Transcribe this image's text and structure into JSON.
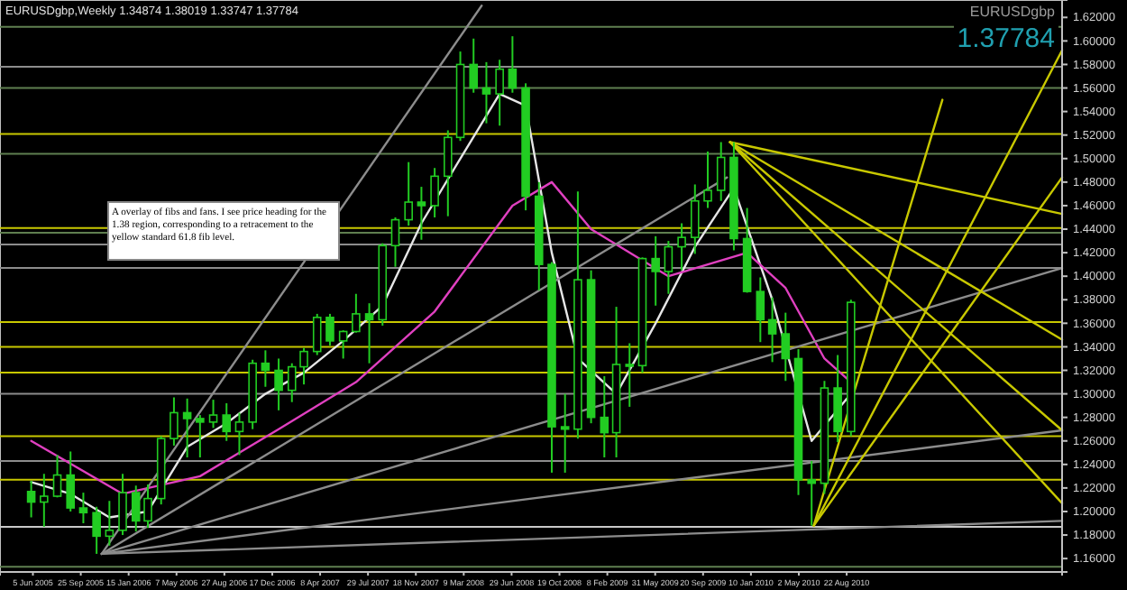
{
  "chart_data": {
    "type": "candlestick",
    "title": "EURUSDgbp,Weekly  1.34874 1.38019 1.33747 1.37784",
    "subtitle": "EURUSDgbp",
    "annotations": [
      "A overlay of fibs and fans. I see price heading for the 1.38 region, corresponding to a retracement to the yellow standard 61.8 fib level.",
      "1.37784"
    ],
    "xlim": [
      "2005-03-20",
      "2012-01-08"
    ],
    "ylim": [
      1.1486,
      1.6348
    ],
    "xticks": [
      {
        "value": "2005-06-05",
        "label": "5 Jun 2005"
      },
      {
        "value": "2005-09-25",
        "label": "25 Sep 2005"
      },
      {
        "value": "2006-01-15",
        "label": "15 Jan 2006"
      },
      {
        "value": "2006-05-07",
        "label": "7 May 2006"
      },
      {
        "value": "2006-08-27",
        "label": "27 Aug 2006"
      },
      {
        "value": "2006-12-17",
        "label": "17 Dec 2006"
      },
      {
        "value": "2007-04-08",
        "label": "8 Apr 2007"
      },
      {
        "value": "2007-07-29",
        "label": "29 Jul 2007"
      },
      {
        "value": "2007-11-18",
        "label": "18 Nov 2007"
      },
      {
        "value": "2008-03-09",
        "label": "9 Mar 2008"
      },
      {
        "value": "2008-06-29",
        "label": "29 Jun 2008"
      },
      {
        "value": "2008-10-19",
        "label": "19 Oct 2008"
      },
      {
        "value": "2009-02-08",
        "label": "8 Feb 2009"
      },
      {
        "value": "2009-05-31",
        "label": "31 May 2009"
      },
      {
        "value": "2009-09-20",
        "label": "20 Sep 2009"
      },
      {
        "value": "2010-01-10",
        "label": "10 Jan 2010"
      },
      {
        "value": "2010-05-02",
        "label": "2 May 2010"
      },
      {
        "value": "2010-08-22",
        "label": "22 Aug 2010"
      }
    ],
    "yticks": [
      {
        "value": 1.16,
        "label": "1.16000"
      },
      {
        "value": 1.18,
        "label": "1.18000"
      },
      {
        "value": 1.2,
        "label": "1.20000"
      },
      {
        "value": 1.22,
        "label": "1.22000"
      },
      {
        "value": 1.24,
        "label": "1.24000"
      },
      {
        "value": 1.26,
        "label": "1.26000"
      },
      {
        "value": 1.28,
        "label": "1.28000"
      },
      {
        "value": 1.3,
        "label": "1.30000"
      },
      {
        "value": 1.32,
        "label": "1.32000"
      },
      {
        "value": 1.34,
        "label": "1.34000"
      },
      {
        "value": 1.36,
        "label": "1.36000"
      },
      {
        "value": 1.38,
        "label": "1.38000"
      },
      {
        "value": 1.4,
        "label": "1.40000"
      },
      {
        "value": 1.42,
        "label": "1.42000"
      },
      {
        "value": 1.44,
        "label": "1.44000"
      },
      {
        "value": 1.46,
        "label": "1.46000"
      },
      {
        "value": 1.48,
        "label": "1.48000"
      },
      {
        "value": 1.5,
        "label": "1.50000"
      },
      {
        "value": 1.52,
        "label": "1.52000"
      },
      {
        "value": 1.54,
        "label": "1.54000"
      },
      {
        "value": 1.56,
        "label": "1.56000"
      },
      {
        "value": 1.58,
        "label": "1.58000"
      },
      {
        "value": 1.6,
        "label": "1.60000"
      },
      {
        "value": 1.62,
        "label": "1.62000"
      }
    ],
    "ref_lines": [
      {
        "axis": "y",
        "value": 1.612,
        "color": "#5f7f50"
      },
      {
        "axis": "y",
        "value": 1.578,
        "color": "#8c8c8c"
      },
      {
        "axis": "y",
        "value": 1.56,
        "color": "#5f7f50"
      },
      {
        "axis": "y",
        "value": 1.521,
        "color": "#c8c800"
      },
      {
        "axis": "y",
        "value": 1.504,
        "color": "#5f7f50"
      },
      {
        "axis": "y",
        "value": 1.441,
        "color": "#c8c800"
      },
      {
        "axis": "y",
        "value": 1.437,
        "color": "#5f7f50"
      },
      {
        "axis": "y",
        "value": 1.427,
        "color": "#8c8c8c"
      },
      {
        "axis": "y",
        "value": 1.407,
        "color": "#8c8c8c"
      },
      {
        "axis": "y",
        "value": 1.361,
        "color": "#c8c800"
      },
      {
        "axis": "y",
        "value": 1.34,
        "color": "#c8c800"
      },
      {
        "axis": "y",
        "value": 1.318,
        "color": "#c8c800"
      },
      {
        "axis": "y",
        "value": 1.3,
        "color": "#8c8c8c"
      },
      {
        "axis": "y",
        "value": 1.264,
        "color": "#c8c800"
      },
      {
        "axis": "y",
        "value": 1.243,
        "color": "#8c8c8c"
      },
      {
        "axis": "y",
        "value": 1.227,
        "color": "#c8c800"
      },
      {
        "axis": "y",
        "value": 1.187,
        "color": "#c8c8c8"
      },
      {
        "axis": "y",
        "value": 1.153,
        "color": "#5f7f50"
      }
    ],
    "series": [
      {
        "color": "#22cc22",
        "x": [
          "2005-06-01",
          "2005-07-01",
          "2005-08-01",
          "2005-09-01",
          "2005-10-01",
          "2005-11-01",
          "2005-12-01",
          "2006-01-01",
          "2006-02-01",
          "2006-03-01",
          "2006-04-01",
          "2006-05-01",
          "2006-06-01",
          "2006-07-01",
          "2006-08-01",
          "2006-09-01",
          "2006-10-01",
          "2006-11-01",
          "2006-12-01",
          "2007-01-01",
          "2007-02-01",
          "2007-03-01",
          "2007-04-01",
          "2007-05-01",
          "2007-06-01",
          "2007-07-01",
          "2007-08-01",
          "2007-09-01",
          "2007-10-01",
          "2007-11-01",
          "2007-12-01",
          "2008-01-01",
          "2008-02-01",
          "2008-03-01",
          "2008-04-01",
          "2008-05-01",
          "2008-06-01",
          "2008-07-01",
          "2008-08-01",
          "2008-09-01",
          "2008-10-01",
          "2008-11-01",
          "2008-12-01",
          "2009-01-01",
          "2009-02-01",
          "2009-03-01",
          "2009-04-01",
          "2009-05-01",
          "2009-06-01",
          "2009-07-01",
          "2009-08-01",
          "2009-09-01",
          "2009-10-01",
          "2009-11-01",
          "2009-12-01",
          "2010-01-01",
          "2010-02-01",
          "2010-03-01",
          "2010-04-01",
          "2010-05-01",
          "2010-06-01",
          "2010-07-01",
          "2010-08-01",
          "2010-09-01"
        ],
        "ohlc": [
          [
            1.217,
            1.226,
            1.195,
            1.208
          ],
          [
            1.208,
            1.232,
            1.187,
            1.213
          ],
          [
            1.213,
            1.248,
            1.212,
            1.231
          ],
          [
            1.231,
            1.251,
            1.2,
            1.203
          ],
          [
            1.203,
            1.216,
            1.19,
            1.199
          ],
          [
            1.199,
            1.204,
            1.164,
            1.179
          ],
          [
            1.179,
            1.209,
            1.171,
            1.184
          ],
          [
            1.184,
            1.232,
            1.18,
            1.216
          ],
          [
            1.216,
            1.222,
            1.183,
            1.192
          ],
          [
            1.192,
            1.223,
            1.186,
            1.211
          ],
          [
            1.211,
            1.264,
            1.206,
            1.262
          ],
          [
            1.262,
            1.297,
            1.256,
            1.284
          ],
          [
            1.284,
            1.296,
            1.246,
            1.279
          ],
          [
            1.279,
            1.282,
            1.246,
            1.276
          ],
          [
            1.276,
            1.295,
            1.271,
            1.282
          ],
          [
            1.282,
            1.292,
            1.26,
            1.268
          ],
          [
            1.268,
            1.284,
            1.248,
            1.276
          ],
          [
            1.276,
            1.329,
            1.27,
            1.326
          ],
          [
            1.326,
            1.337,
            1.306,
            1.32
          ],
          [
            1.32,
            1.33,
            1.286,
            1.303
          ],
          [
            1.303,
            1.326,
            1.293,
            1.323
          ],
          [
            1.323,
            1.339,
            1.308,
            1.336
          ],
          [
            1.336,
            1.368,
            1.333,
            1.365
          ],
          [
            1.365,
            1.368,
            1.341,
            1.345
          ],
          [
            1.345,
            1.354,
            1.33,
            1.353
          ],
          [
            1.353,
            1.385,
            1.352,
            1.368
          ],
          [
            1.368,
            1.377,
            1.326,
            1.363
          ],
          [
            1.363,
            1.428,
            1.358,
            1.426
          ],
          [
            1.426,
            1.45,
            1.408,
            1.448
          ],
          [
            1.448,
            1.497,
            1.443,
            1.463
          ],
          [
            1.463,
            1.476,
            1.431,
            1.46
          ],
          [
            1.46,
            1.492,
            1.45,
            1.485
          ],
          [
            1.485,
            1.524,
            1.451,
            1.518
          ],
          [
            1.518,
            1.591,
            1.515,
            1.58
          ],
          [
            1.58,
            1.602,
            1.556,
            1.56
          ],
          [
            1.56,
            1.582,
            1.53,
            1.555
          ],
          [
            1.555,
            1.584,
            1.528,
            1.576
          ],
          [
            1.576,
            1.604,
            1.556,
            1.56
          ],
          [
            1.56,
            1.564,
            1.456,
            1.468
          ],
          [
            1.468,
            1.48,
            1.388,
            1.41
          ],
          [
            1.41,
            1.412,
            1.233,
            1.272
          ],
          [
            1.272,
            1.3,
            1.233,
            1.27
          ],
          [
            1.27,
            1.472,
            1.262,
            1.397
          ],
          [
            1.397,
            1.405,
            1.275,
            1.28
          ],
          [
            1.28,
            1.315,
            1.246,
            1.267
          ],
          [
            1.267,
            1.374,
            1.246,
            1.325
          ],
          [
            1.325,
            1.343,
            1.289,
            1.324
          ],
          [
            1.324,
            1.416,
            1.318,
            1.415
          ],
          [
            1.415,
            1.434,
            1.375,
            1.404
          ],
          [
            1.404,
            1.43,
            1.385,
            1.425
          ],
          [
            1.425,
            1.445,
            1.405,
            1.433
          ],
          [
            1.433,
            1.478,
            1.419,
            1.464
          ],
          [
            1.464,
            1.506,
            1.458,
            1.473
          ],
          [
            1.473,
            1.514,
            1.464,
            1.501
          ],
          [
            1.501,
            1.514,
            1.422,
            1.432
          ],
          [
            1.432,
            1.458,
            1.386,
            1.387
          ],
          [
            1.387,
            1.399,
            1.344,
            1.363
          ],
          [
            1.363,
            1.382,
            1.327,
            1.351
          ],
          [
            1.351,
            1.369,
            1.311,
            1.33
          ],
          [
            1.33,
            1.338,
            1.214,
            1.227
          ],
          [
            1.227,
            1.243,
            1.188,
            1.224
          ],
          [
            1.224,
            1.311,
            1.215,
            1.305
          ],
          [
            1.305,
            1.333,
            1.259,
            1.268
          ],
          [
            1.268,
            1.38,
            1.264,
            1.3778
          ]
        ]
      },
      {
        "type": "line",
        "color": "#e6e6e6",
        "x": [
          "2005-06-01",
          "2005-09-01",
          "2005-12-01",
          "2006-03-01",
          "2006-06-01",
          "2006-09-01",
          "2006-12-01",
          "2007-03-01",
          "2007-06-01",
          "2007-09-01",
          "2007-12-01",
          "2008-03-01",
          "2008-06-01",
          "2008-08-01",
          "2008-10-01",
          "2008-12-01",
          "2009-03-01",
          "2009-06-01",
          "2009-09-01",
          "2009-12-01",
          "2010-03-01",
          "2010-06-01",
          "2010-09-01"
        ],
        "values": [
          1.225,
          1.215,
          1.195,
          1.2,
          1.255,
          1.275,
          1.3,
          1.318,
          1.345,
          1.375,
          1.445,
          1.5,
          1.555,
          1.545,
          1.42,
          1.33,
          1.3,
          1.36,
          1.425,
          1.475,
          1.38,
          1.26,
          1.3
        ]
      },
      {
        "type": "line",
        "color": "#e040c0",
        "x": [
          "2005-06-01",
          "2006-01-01",
          "2006-07-01",
          "2007-01-01",
          "2007-07-01",
          "2008-01-01",
          "2008-07-01",
          "2008-10-01",
          "2009-01-01",
          "2009-07-01",
          "2010-01-01",
          "2010-04-01",
          "2010-07-01",
          "2010-09-01"
        ],
        "values": [
          1.26,
          1.215,
          1.23,
          1.27,
          1.31,
          1.37,
          1.46,
          1.48,
          1.44,
          1.4,
          1.42,
          1.39,
          1.33,
          1.31
        ]
      },
      {
        "type": "line",
        "color": "#8c8c8c",
        "x": [
          "2005-11-13",
          "2008-04-20"
        ],
        "values": [
          1.164,
          1.63
        ]
      },
      {
        "type": "line",
        "color": "#8c8c8c",
        "x": [
          "2005-11-13",
          "2009-11-15"
        ],
        "values": [
          1.164,
          1.484
        ]
      },
      {
        "type": "line",
        "color": "#8c8c8c",
        "x": [
          "2005-11-13",
          "2012-01-08"
        ],
        "values": [
          1.164,
          1.407
        ]
      },
      {
        "type": "line",
        "color": "#8c8c8c",
        "x": [
          "2005-11-13",
          "2012-01-08"
        ],
        "values": [
          1.164,
          1.269
        ]
      },
      {
        "type": "line",
        "color": "#8c8c8c",
        "x": [
          "2005-11-13",
          "2012-01-08"
        ],
        "values": [
          1.164,
          1.192
        ]
      },
      {
        "type": "line",
        "color": "#c8c800",
        "x": [
          "2009-11-22",
          "2012-01-08"
        ],
        "values": [
          1.514,
          1.453
        ]
      },
      {
        "type": "line",
        "color": "#c8c800",
        "x": [
          "2009-11-22",
          "2012-01-08"
        ],
        "values": [
          1.514,
          1.346
        ]
      },
      {
        "type": "line",
        "color": "#c8c800",
        "x": [
          "2009-11-22",
          "2012-01-08"
        ],
        "values": [
          1.514,
          1.269
        ]
      },
      {
        "type": "line",
        "color": "#c8c800",
        "x": [
          "2009-11-22",
          "2012-01-08"
        ],
        "values": [
          1.514,
          1.207
        ]
      },
      {
        "type": "line",
        "color": "#c8c800",
        "x": [
          "2010-06-06",
          "2011-04-03"
        ],
        "values": [
          1.188,
          1.55
        ]
      },
      {
        "type": "line",
        "color": "#c8c800",
        "x": [
          "2010-06-06",
          "2012-01-08"
        ],
        "values": [
          1.188,
          1.592
        ]
      },
      {
        "type": "line",
        "color": "#c8c800",
        "x": [
          "2010-06-06",
          "2012-01-08"
        ],
        "values": [
          1.188,
          1.484
        ]
      }
    ]
  }
}
